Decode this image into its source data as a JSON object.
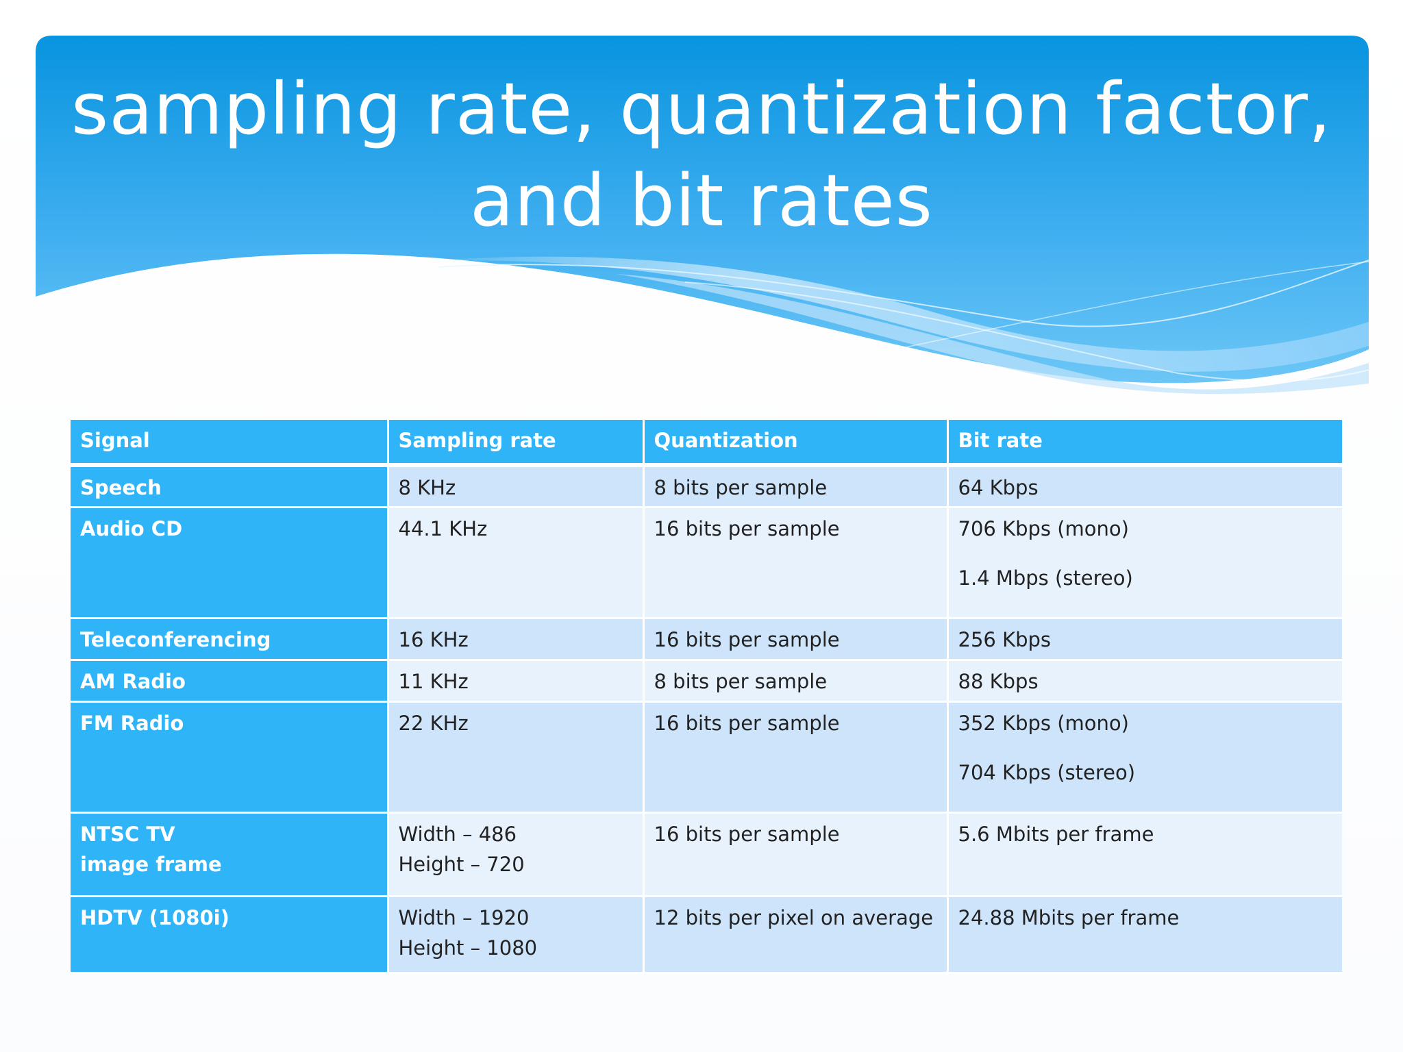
{
  "slide": {
    "title_line1": "sampling rate, quantization factor,",
    "title_line2": "and bit rates",
    "colors": {
      "header_blue": "#0a96e0",
      "table_header": "#2fb4f8",
      "row_dark": "#cde4fb",
      "row_light": "#e8f2fd"
    }
  },
  "table": {
    "headers": [
      "Signal",
      "Sampling rate",
      "Quantization",
      "Bit rate"
    ],
    "rows": [
      {
        "signal": [
          "Speech"
        ],
        "sampling": [
          "8 KHz"
        ],
        "quantization": [
          "8 bits per sample"
        ],
        "bitrate": [
          "64 Kbps"
        ]
      },
      {
        "signal": [
          "Audio CD"
        ],
        "sampling": [
          "44.1 KHz"
        ],
        "quantization": [
          "16 bits per sample"
        ],
        "bitrate": [
          "706 Kbps (mono)",
          "1.4 Mbps (stereo)"
        ]
      },
      {
        "signal": [
          "Teleconferencing"
        ],
        "sampling": [
          "16 KHz"
        ],
        "quantization": [
          "16 bits per sample"
        ],
        "bitrate": [
          "256 Kbps"
        ]
      },
      {
        "signal": [
          "AM Radio"
        ],
        "sampling": [
          "11 KHz"
        ],
        "quantization": [
          "8 bits per sample"
        ],
        "bitrate": [
          "88 Kbps"
        ]
      },
      {
        "signal": [
          "FM Radio"
        ],
        "sampling": [
          "22 KHz"
        ],
        "quantization": [
          "16 bits per sample"
        ],
        "bitrate": [
          "352 Kbps (mono)",
          "704 Kbps (stereo)"
        ]
      },
      {
        "signal": [
          "NTSC TV",
          "image frame"
        ],
        "sampling": [
          "Width – 486",
          "Height – 720"
        ],
        "quantization": [
          "16 bits per sample"
        ],
        "bitrate": [
          "5.6 Mbits per frame"
        ]
      },
      {
        "signal": [
          "HDTV (1080i)"
        ],
        "sampling": [
          "Width – 1920",
          "Height – 1080"
        ],
        "quantization": [
          "12 bits per pixel on average"
        ],
        "bitrate": [
          "24.88 Mbits per frame"
        ]
      }
    ]
  }
}
